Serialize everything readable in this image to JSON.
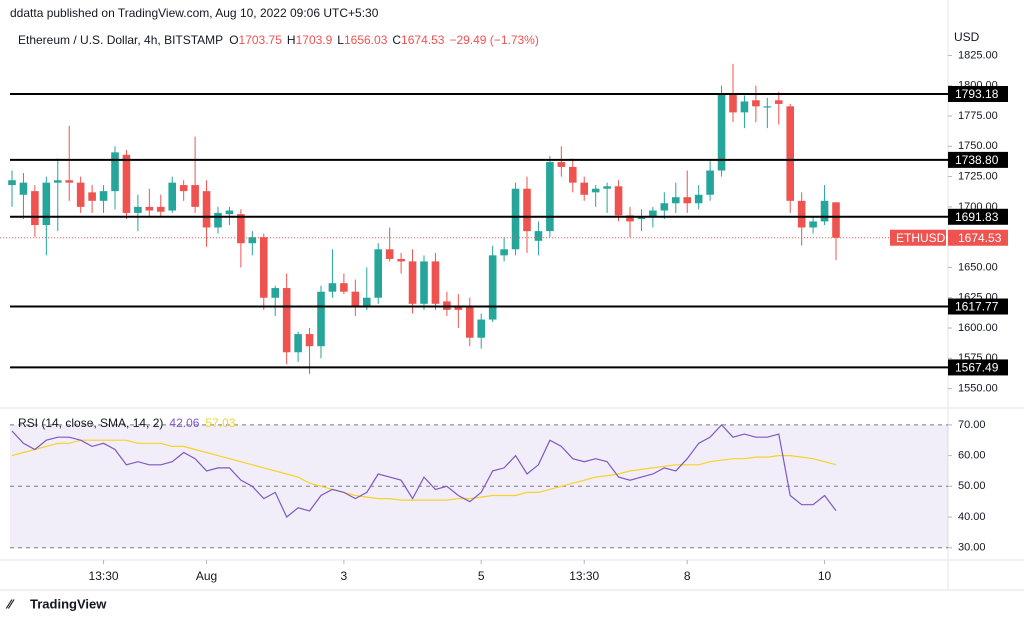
{
  "header": {
    "publisher": "ddatta published on TradingView.com, Aug 10, 2022 09:06 UTC+5:30",
    "logo": "TradingView"
  },
  "chart_data": {
    "type": "candlestick",
    "symbol": "Ethereum / U.S. Dollar, 4h, BITSTAMP",
    "ohlc_labels": [
      "O",
      "H",
      "L",
      "C"
    ],
    "change": "−29.49 (−1.73%)",
    "currency": "USD",
    "ticker": "ETHUSD",
    "up_color": "#26a69a",
    "down_color": "#ef5350",
    "open": [
      1718,
      1710,
      1713,
      1685,
      1720,
      1722,
      1720,
      1712,
      1705,
      1713,
      1743,
      1695,
      1700,
      1700,
      1697,
      1718,
      1718,
      1713,
      1683,
      1694,
      1694,
      1670,
      1675,
      1625,
      1633,
      1580,
      1595,
      1585,
      1630,
      1637,
      1630,
      1617,
      1625,
      1665,
      1657,
      1655,
      1620,
      1655,
      1622,
      1617,
      1617,
      1592,
      1607,
      1660,
      1665,
      1715,
      1672,
      1680,
      1737,
      1733,
      1720,
      1712,
      1715,
      1717,
      1693,
      1690,
      1692,
      1697,
      1703,
      1708,
      1703,
      1710,
      1730,
      1793,
      1778,
      1788,
      1782,
      1788,
      1783,
      1705,
      1683,
      1688,
      1703.75
    ],
    "high": [
      1730,
      1728,
      1718,
      1725,
      1740,
      1767,
      1725,
      1718,
      1718,
      1750,
      1747,
      1710,
      1715,
      1710,
      1725,
      1722,
      1758,
      1722,
      1700,
      1700,
      1698,
      1680,
      1678,
      1635,
      1645,
      1597,
      1600,
      1635,
      1665,
      1645,
      1640,
      1650,
      1670,
      1683,
      1662,
      1665,
      1660,
      1662,
      1630,
      1628,
      1625,
      1612,
      1668,
      1675,
      1720,
      1725,
      1688,
      1742,
      1750,
      1740,
      1725,
      1718,
      1720,
      1722,
      1700,
      1698,
      1700,
      1712,
      1720,
      1730,
      1718,
      1738,
      1800,
      1818,
      1792,
      1800,
      1790,
      1795,
      1785,
      1712,
      1692,
      1718,
      1703.9
    ],
    "low": [
      1700,
      1690,
      1675,
      1660,
      1680,
      1705,
      1695,
      1695,
      1695,
      1698,
      1690,
      1680,
      1692,
      1692,
      1695,
      1705,
      1695,
      1667,
      1678,
      1685,
      1650,
      1660,
      1615,
      1610,
      1570,
      1572,
      1562,
      1575,
      1625,
      1628,
      1610,
      1615,
      1620,
      1655,
      1645,
      1612,
      1615,
      1615,
      1610,
      1600,
      1585,
      1583,
      1605,
      1655,
      1660,
      1662,
      1660,
      1675,
      1725,
      1712,
      1705,
      1700,
      1695,
      1688,
      1675,
      1680,
      1683,
      1690,
      1695,
      1695,
      1698,
      1705,
      1725,
      1770,
      1765,
      1770,
      1765,
      1768,
      1695,
      1668,
      1678,
      1685,
      1656.03
    ],
    "close": [
      1722,
      1720,
      1685,
      1720,
      1722,
      1720,
      1700,
      1705,
      1713,
      1745,
      1695,
      1700,
      1697,
      1696,
      1720,
      1713,
      1700,
      1683,
      1695,
      1697,
      1670,
      1675,
      1625,
      1633,
      1580,
      1595,
      1585,
      1630,
      1637,
      1630,
      1617,
      1625,
      1665,
      1657,
      1655,
      1620,
      1655,
      1620,
      1615,
      1615,
      1592,
      1607,
      1660,
      1665,
      1715,
      1680,
      1680,
      1737,
      1733,
      1720,
      1710,
      1715,
      1717,
      1693,
      1688,
      1692,
      1697,
      1703,
      1708,
      1703,
      1710,
      1730,
      1793,
      1778,
      1787,
      1783,
      1783,
      1785,
      1705,
      1683,
      1688,
      1705,
      1674.53
    ],
    "levels": [
      1793.18,
      1738.8,
      1691.83,
      1617.77,
      1567.49
    ],
    "level_labels": [
      "1793.18",
      "1738.80",
      "1691.83",
      "1617.77",
      "1567.49"
    ],
    "ylim": [
      1534,
      1846
    ],
    "yticks": [
      {
        "value": 1550,
        "label": "1550.00"
      },
      {
        "value": 1575,
        "label": "1575.00"
      },
      {
        "value": 1600,
        "label": "1600.00"
      },
      {
        "value": 1625,
        "label": "1625.00"
      },
      {
        "value": 1650,
        "label": "1650.00"
      },
      {
        "value": 1675,
        "label": "1675.00"
      },
      {
        "value": 1700,
        "label": "1700.00"
      },
      {
        "value": 1725,
        "label": "1725.00"
      },
      {
        "value": 1750,
        "label": "1750.00"
      },
      {
        "value": 1775,
        "label": "1775.00"
      },
      {
        "value": 1800,
        "label": "1800.00"
      },
      {
        "value": 1825,
        "label": "1825.00"
      }
    ],
    "xticks": [
      {
        "value": 8,
        "label": "13:30"
      },
      {
        "value": 17,
        "label": "Aug"
      },
      {
        "value": 29,
        "label": "3"
      },
      {
        "value": 41,
        "label": "5"
      },
      {
        "value": 50,
        "label": "13:30"
      },
      {
        "value": 59,
        "label": "8"
      },
      {
        "value": 71,
        "label": "10"
      }
    ],
    "rsi": {
      "title": "RSI (14, close, SMA, 14, 2)",
      "series": [
        {
          "name": "RSI",
          "color": "#7e57c2",
          "values": [
            68,
            64,
            62,
            65,
            66,
            66,
            65,
            63,
            64,
            62,
            57,
            58,
            57,
            57,
            58,
            61,
            59,
            55,
            56,
            56,
            52,
            50,
            46,
            48,
            40,
            43,
            42,
            47,
            49,
            48,
            46,
            48,
            54,
            53,
            52,
            46,
            53,
            49,
            50,
            47,
            45,
            48,
            55,
            56,
            60,
            54,
            57,
            65,
            63,
            59,
            58,
            59,
            58,
            53,
            52,
            53,
            54,
            56,
            55,
            59,
            64,
            66,
            70,
            66,
            67,
            66,
            66,
            67,
            47,
            44,
            44,
            47,
            42.06
          ]
        },
        {
          "name": "SMA",
          "color": "#f5d327",
          "values": [
            60,
            61,
            62,
            63,
            64,
            64,
            65,
            65,
            65,
            65,
            65,
            64,
            64,
            64,
            63,
            63,
            62,
            61,
            60,
            59,
            58,
            57,
            56,
            55,
            54,
            53,
            51,
            50,
            49,
            48,
            47,
            46.5,
            46,
            46,
            45.5,
            45.5,
            45.5,
            45.5,
            45.5,
            46,
            46,
            46.5,
            47,
            47,
            47,
            48,
            48,
            49,
            50,
            51,
            52,
            53,
            53.5,
            54,
            55,
            55.5,
            56,
            56.5,
            57,
            57,
            57,
            58,
            58.5,
            59,
            59,
            59.5,
            59.5,
            60,
            60,
            59.5,
            59,
            58,
            57.03
          ]
        }
      ],
      "ylim": [
        26,
        75.5
      ],
      "yticks": [
        {
          "value": 30,
          "label": "30.00"
        },
        {
          "value": 40,
          "label": "40.00"
        },
        {
          "value": 50,
          "label": "50.00"
        },
        {
          "value": 60,
          "label": "60.00"
        },
        {
          "value": 70,
          "label": "70.00"
        }
      ],
      "levels": [
        30,
        50,
        70
      ]
    }
  }
}
